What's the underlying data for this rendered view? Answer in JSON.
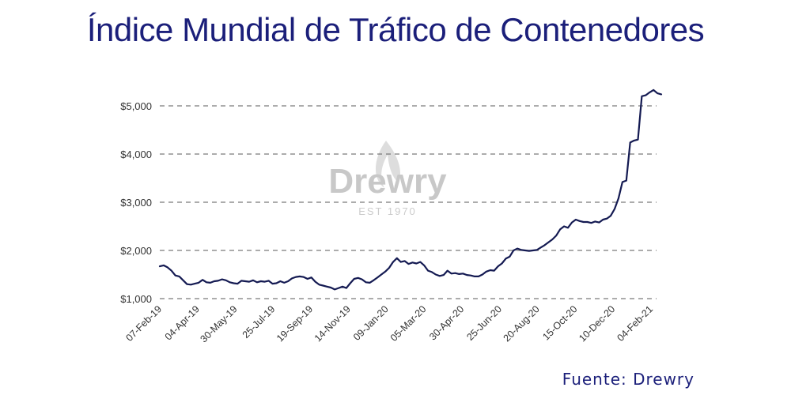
{
  "title": "Índice Mundial de Tráfico de Contenedores",
  "source": "Fuente:  Drewry",
  "watermark": {
    "name": "Drewry",
    "est": "EST 1970"
  },
  "colors": {
    "title": "#1b1f7a",
    "line": "#141a52",
    "grid": "#7a7a7a"
  },
  "chart_data": {
    "type": "line",
    "title": "Índice Mundial de Tráfico de Contenedores",
    "xlabel": "",
    "ylabel": "",
    "ylim": [
      1000,
      5400
    ],
    "yticks": [
      1000,
      2000,
      3000,
      4000,
      5000
    ],
    "ytick_labels": [
      "$1,000",
      "$2,000",
      "$3,000",
      "$4,000",
      "$5,000"
    ],
    "xtick_labels": [
      "07-Feb-19",
      "04-Apr-19",
      "30-May-19",
      "25-Jul-19",
      "19-Sep-19",
      "14-Nov-19",
      "09-Jan-20",
      "05-Mar-20",
      "30-Apr-20",
      "25-Jun-20",
      "20-Aug-20",
      "15-Oct-20",
      "10-Dec-20",
      "04-Feb-21"
    ],
    "grid": "horizontal dashed",
    "series": [
      {
        "values": [
          1670,
          1690,
          1650,
          1580,
          1480,
          1460,
          1380,
          1300,
          1290,
          1310,
          1330,
          1390,
          1340,
          1330,
          1360,
          1370,
          1400,
          1380,
          1340,
          1320,
          1310,
          1370,
          1360,
          1350,
          1380,
          1340,
          1360,
          1350,
          1370,
          1310,
          1320,
          1360,
          1330,
          1360,
          1420,
          1450,
          1460,
          1450,
          1410,
          1440,
          1350,
          1290,
          1270,
          1250,
          1230,
          1190,
          1220,
          1250,
          1220,
          1320,
          1410,
          1430,
          1400,
          1340,
          1330,
          1380,
          1440,
          1500,
          1560,
          1640,
          1760,
          1840,
          1760,
          1780,
          1720,
          1750,
          1730,
          1760,
          1690,
          1580,
          1550,
          1500,
          1470,
          1490,
          1580,
          1520,
          1530,
          1510,
          1520,
          1490,
          1480,
          1460,
          1460,
          1500,
          1560,
          1590,
          1580,
          1670,
          1730,
          1830,
          1870,
          2000,
          2040,
          2010,
          2000,
          1990,
          2000,
          2010,
          2060,
          2110,
          2170,
          2230,
          2310,
          2440,
          2500,
          2470,
          2580,
          2640,
          2610,
          2590,
          2590,
          2570,
          2600,
          2580,
          2640,
          2660,
          2720,
          2860,
          3080,
          3420,
          3450,
          4240,
          4280,
          4300,
          5200,
          5220,
          5280,
          5330,
          5260,
          5240
        ]
      }
    ]
  }
}
